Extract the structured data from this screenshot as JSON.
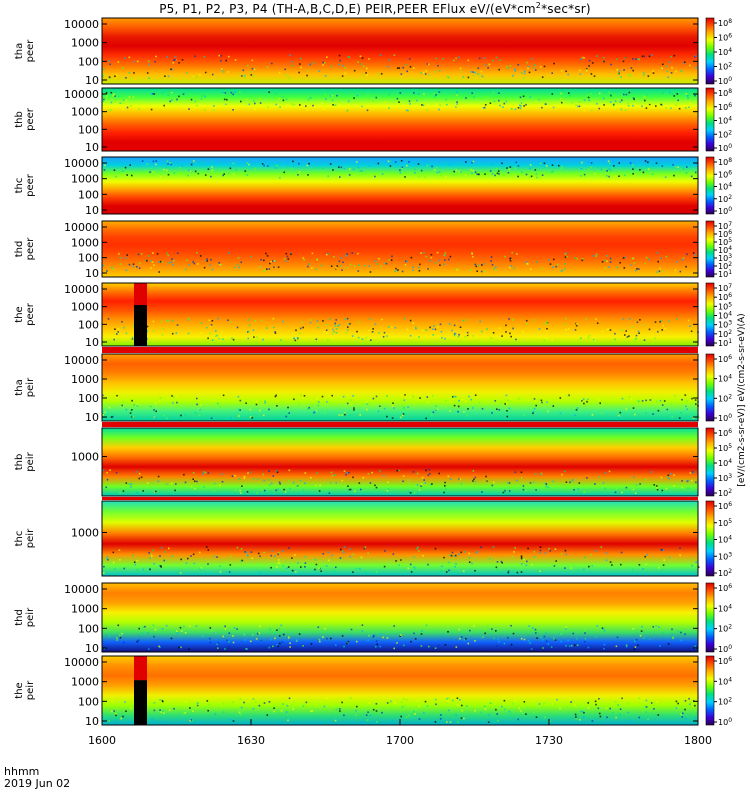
{
  "title": "P5, P1, P2, P3, P4 (TH-A,B,C,D,E) PEIR,PEER EFlux eV/(eV*cm²*sec*sr)",
  "title_parts": {
    "prefix": "P5, P1, P2, P3, P4 (TH-A,B,C,D,E) PEIR,PEER EFlux eV/(eV*cm",
    "sup": "2",
    "suffix": "*sec*sr)"
  },
  "colorbar_title": "[eV/(cm2-s-sr-eV)] eV/(cm2-s-sr-eV)(A)",
  "time_stamp": {
    "label": "hhmm",
    "date": "2019 Jun 02"
  },
  "chart_data": {
    "type": "heatmap",
    "x_axis": {
      "range": [
        "1600",
        "1800"
      ],
      "tick_labels": [
        "1600",
        "1630",
        "1700",
        "1730",
        "1800"
      ]
    },
    "colorscale": [
      "#2a0050",
      "#3c00d8",
      "#0060ff",
      "#00d0ff",
      "#00e080",
      "#70ff00",
      "#f0ff00",
      "#ffb000",
      "#ff5000",
      "#e00000"
    ],
    "panels": [
      {
        "label": "tha peer",
        "yaxis": "log",
        "ytick_labels": [
          "10000",
          "1000",
          "100",
          "10"
        ],
        "colorbar_exponents": [
          "8",
          "6",
          "4",
          "2",
          "0"
        ]
      },
      {
        "label": "thb peer",
        "yaxis": "log",
        "ytick_labels": [
          "10000",
          "1000",
          "100",
          "10"
        ],
        "colorbar_exponents": [
          "8",
          "6",
          "4",
          "2",
          "0"
        ]
      },
      {
        "label": "thc peer",
        "yaxis": "log",
        "ytick_labels": [
          "10000",
          "1000",
          "100",
          "10"
        ],
        "colorbar_exponents": [
          "8",
          "6",
          "4",
          "2",
          "0"
        ]
      },
      {
        "label": "thd peer",
        "yaxis": "log",
        "ytick_labels": [
          "10000",
          "1000",
          "100",
          "10"
        ],
        "colorbar_exponents": [
          "7",
          "6",
          "5",
          "4",
          "3",
          "2",
          "1"
        ]
      },
      {
        "label": "the peer",
        "yaxis": "log",
        "ytick_labels": [
          "10000",
          "1000",
          "100",
          "10"
        ],
        "colorbar_exponents": [
          "7",
          "6",
          "5",
          "4",
          "3",
          "2",
          "1"
        ]
      },
      {
        "label": "tha peir",
        "yaxis": "log",
        "ytick_labels": [
          "10000",
          "1000",
          "100",
          "10"
        ],
        "colorbar_exponents": [
          "6",
          "4",
          "2",
          "0"
        ]
      },
      {
        "label": "thb peir",
        "yaxis": "log",
        "ytick_labels": [
          "1000"
        ],
        "colorbar_exponents": [
          "6",
          "5",
          "4",
          "3",
          "2"
        ]
      },
      {
        "label": "thc peir",
        "yaxis": "log",
        "ytick_labels": [
          "1000"
        ],
        "colorbar_exponents": [
          "6",
          "5",
          "4",
          "3",
          "2"
        ]
      },
      {
        "label": "thd peir",
        "yaxis": "log",
        "ytick_labels": [
          "10000",
          "1000",
          "100",
          "10"
        ],
        "colorbar_exponents": [
          "6",
          "4",
          "2",
          "0"
        ]
      },
      {
        "label": "the peir",
        "yaxis": "log",
        "ytick_labels": [
          "10000",
          "1000",
          "100",
          "10"
        ],
        "colorbar_exponents": [
          "6",
          "4",
          "2",
          "0"
        ]
      }
    ]
  }
}
